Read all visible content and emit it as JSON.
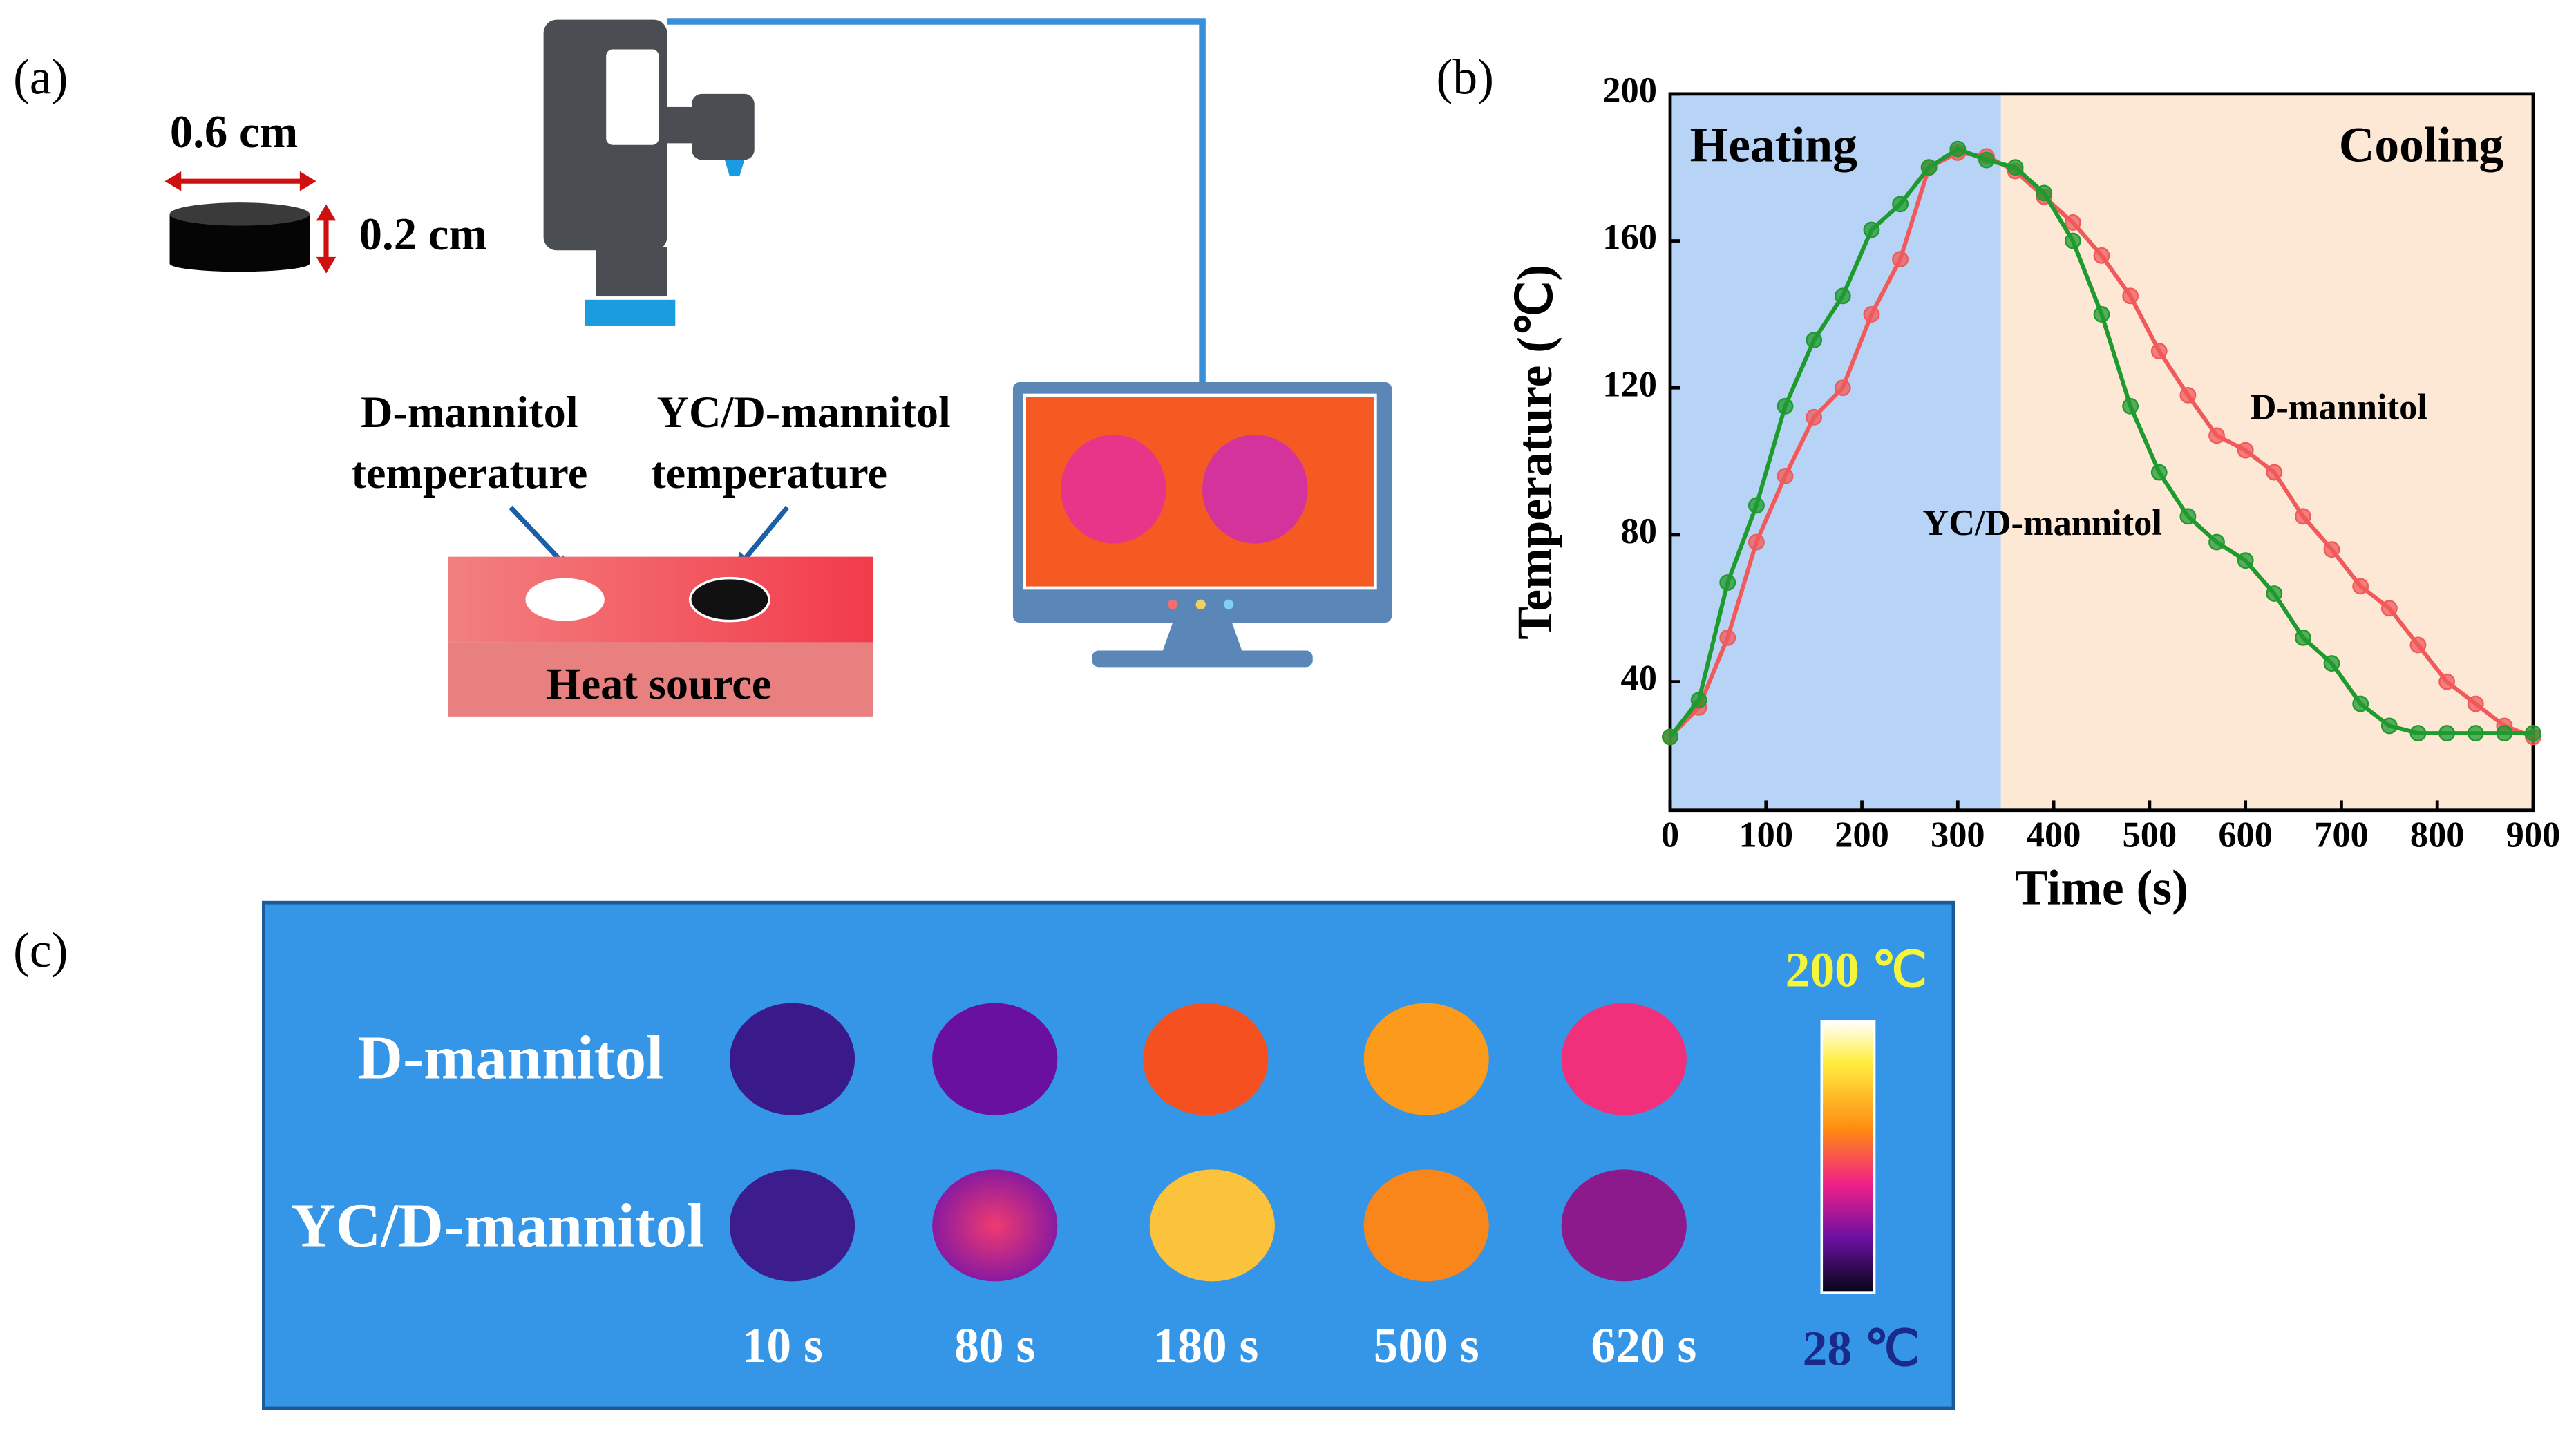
{
  "chart_data": {
    "type": "line",
    "panel_label": "(b)",
    "x_label": "Time (s)",
    "y_label": "Temperature (℃)",
    "x": [
      0,
      30,
      60,
      90,
      120,
      150,
      180,
      210,
      240,
      270,
      300,
      330,
      360,
      390,
      420,
      450,
      480,
      510,
      540,
      570,
      600,
      630,
      660,
      690,
      720,
      750,
      780,
      810,
      840,
      870,
      900
    ],
    "series": [
      {
        "name": "D-mannitol",
        "color": "#f05a5a",
        "values": [
          25,
          33,
          52,
          78,
          96,
          112,
          120,
          140,
          155,
          180,
          184,
          183,
          179,
          172,
          165,
          156,
          145,
          130,
          118,
          107,
          103,
          97,
          85,
          76,
          66,
          60,
          50,
          40,
          34,
          28,
          25
        ]
      },
      {
        "name": "YC/D-mannitol",
        "color": "#1f9a2f",
        "values": [
          25,
          35,
          67,
          88,
          115,
          133,
          145,
          163,
          170,
          180,
          185,
          182,
          180,
          173,
          160,
          140,
          115,
          97,
          85,
          78,
          73,
          64,
          52,
          45,
          34,
          28,
          26,
          26,
          26,
          26,
          26
        ]
      }
    ],
    "regions": [
      {
        "label": "Heating",
        "from": 0,
        "to": 345,
        "color": "#b7d3f5"
      },
      {
        "label": "Cooling",
        "from": 345,
        "to": 900,
        "color": "#fde8d5"
      }
    ],
    "xlim": [
      0,
      900
    ],
    "xticks": [
      0,
      100,
      200,
      300,
      400,
      500,
      600,
      700,
      800,
      900
    ],
    "ylim": [
      5,
      200
    ],
    "yticks": [
      40,
      80,
      120,
      160,
      200
    ]
  },
  "panel_a": {
    "label": "(a)",
    "diameter": "0.6 cm",
    "height": "0.2 cm",
    "left_probe": [
      "D-mannitol",
      "temperature"
    ],
    "right_probe": [
      "YC/D-mannitol",
      "temperature"
    ],
    "heat_source": "Heat source"
  },
  "panel_c": {
    "label": "(c)",
    "rows": [
      "D-mannitol",
      "YC/D-mannitol"
    ],
    "times": [
      "10 s",
      "80 s",
      "180 s",
      "500 s",
      "620 s"
    ],
    "scale_max": "200 ℃",
    "scale_min": "28 ℃"
  }
}
